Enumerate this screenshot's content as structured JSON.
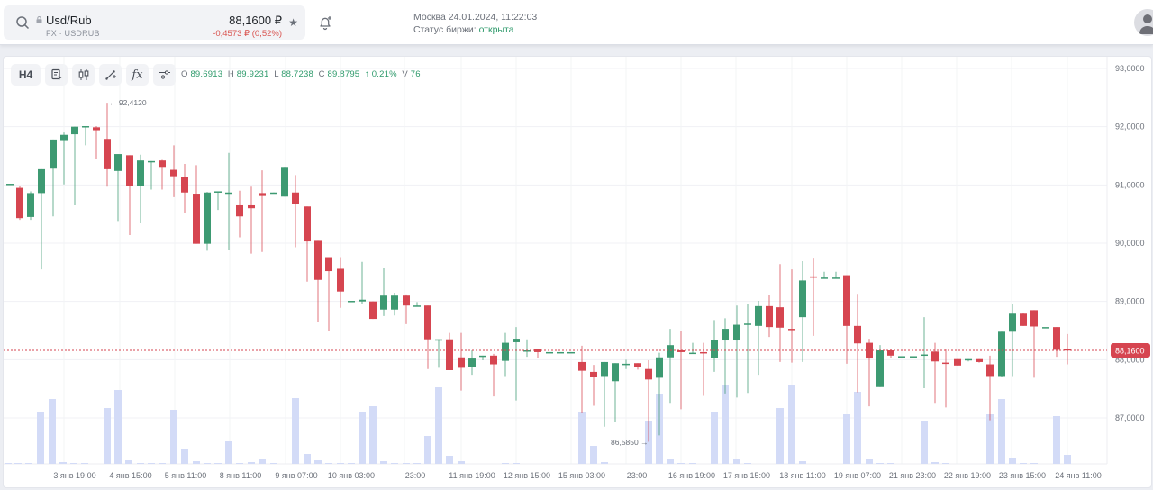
{
  "header": {
    "ticker_name": "Usd/Rub",
    "ticker_sub": "FX · USDRUB",
    "price": "88,1600 ₽",
    "change": "-0,4573 ₽ (0,52%)",
    "favorite_icon": "star-icon",
    "clock": "Москва 24.01.2024, 11:22:03",
    "status_label": "Статус биржи: ",
    "status_value": "открыта"
  },
  "toolbar": {
    "interval": "H4",
    "tools": [
      "chart-type-icon",
      "candles-icon",
      "draw-line-icon",
      "indicators-icon",
      "settings-sliders-icon"
    ],
    "fx_label": "fx"
  },
  "ohlc": {
    "o_label": "O",
    "o": "89.6913",
    "h_label": "H",
    "h": "89.9231",
    "l_label": "L",
    "l": "88.7238",
    "c_label": "C",
    "c": "89.8795",
    "change": "↑ 0.21%",
    "v_label": "V",
    "v": "76"
  },
  "colors": {
    "up": "#3d9a72",
    "down": "#d64550",
    "volume": "#d3dbf7",
    "price_line": "#d64550",
    "accent_green": "#2e9a6b"
  },
  "chart_data": {
    "type": "candlestick",
    "title": "Usd/Rub H4",
    "price_axis": [
      "93,0000",
      "92,0000",
      "91,0000",
      "90,0000",
      "89,0000",
      "88,0000",
      "87,0000"
    ],
    "ylim": [
      86.2,
      93.1
    ],
    "current_price_label": "88,1600",
    "current_price": 88.16,
    "high_marker": "← 92,4120",
    "low_marker": "86,5850 →",
    "time_axis": [
      "3 янв 19:00",
      "4 янв 15:00",
      "5 янв 11:00",
      "8 янв 11:00",
      "9 янв 07:00",
      "10 янв 03:00",
      "23:00",
      "11 янв 19:00",
      "12 янв 15:00",
      "15 янв 03:00",
      "23:00",
      "16 янв 19:00",
      "17 янв 15:00",
      "18 янв 11:00",
      "19 янв 07:00",
      "21 янв 23:00",
      "22 янв 19:00",
      "23 янв 15:00",
      "24 янв 11:00"
    ],
    "candles": [
      [
        10,
        91.02,
        91.02,
        91.02,
        91.02,
        2
      ],
      [
        21,
        90.95,
        90.98,
        90.4,
        90.43,
        2
      ],
      [
        33,
        90.45,
        90.89,
        90.4,
        90.86,
        2
      ],
      [
        45,
        90.86,
        91.25,
        89.55,
        91.27,
        58
      ],
      [
        58,
        91.28,
        91.77,
        90.46,
        91.78,
        63
      ],
      [
        70,
        91.77,
        91.9,
        91.01,
        91.86,
        2
      ],
      [
        82,
        91.87,
        92.0,
        90.65,
        92.0,
        2
      ],
      [
        94,
        92.0,
        92.01,
        91.68,
        92.01,
        2
      ],
      [
        106,
        91.99,
        92.01,
        91.44,
        91.94,
        58
      ],
      [
        118,
        91.79,
        92.41,
        90.97,
        91.27,
        68
      ],
      [
        130,
        91.24,
        91.53,
        90.38,
        91.53,
        2
      ],
      [
        143,
        91.51,
        91.51,
        90.14,
        90.99,
        2
      ],
      [
        155,
        90.98,
        91.52,
        90.34,
        91.42,
        2
      ],
      [
        167,
        91.41,
        91.41,
        90.92,
        91.41,
        2
      ],
      [
        179,
        91.42,
        91.43,
        90.92,
        91.31,
        2
      ],
      [
        192,
        91.26,
        91.68,
        90.79,
        91.15,
        2
      ],
      [
        204,
        91.14,
        91.36,
        90.52,
        90.87,
        52
      ],
      [
        217,
        90.85,
        91.34,
        90.37,
        89.99,
        2
      ],
      [
        229,
        89.99,
        90.88,
        89.87,
        90.87,
        2
      ],
      [
        241,
        90.89,
        90.89,
        90.57,
        90.89,
        2
      ],
      [
        253,
        90.87,
        91.55,
        89.89,
        90.87,
        2
      ],
      [
        265,
        90.65,
        90.9,
        90.1,
        90.46,
        2
      ],
      [
        278,
        90.65,
        90.97,
        89.82,
        90.6,
        2
      ],
      [
        290,
        90.86,
        91.25,
        89.85,
        90.81,
        2
      ],
      [
        303,
        90.87,
        90.87,
        90.86,
        90.87,
        2
      ],
      [
        315,
        90.8,
        91.31,
        90.86,
        91.31,
        22
      ],
      [
        327,
        90.87,
        91.17,
        89.93,
        90.67,
        2
      ],
      [
        340,
        90.63,
        90.63,
        89.34,
        90.03,
        2
      ],
      [
        352,
        90.04,
        90.04,
        88.65,
        89.37,
        2
      ],
      [
        364,
        89.76,
        89.76,
        88.5,
        89.52,
        2
      ],
      [
        377,
        89.56,
        89.76,
        88.89,
        89.17,
        2
      ],
      [
        389,
        89.01,
        89.01,
        89.01,
        89.01,
        2
      ],
      [
        401,
        89.0,
        89.68,
        88.95,
        89.03,
        2
      ],
      [
        413,
        89.0,
        89.0,
        89.0,
        88.7,
        2
      ],
      [
        425,
        88.86,
        89.57,
        88.75,
        89.1,
        58
      ],
      [
        437,
        88.86,
        89.15,
        88.76,
        89.1,
        63
      ],
      [
        450,
        89.1,
        89.12,
        88.61,
        88.93,
        2
      ],
      [
        462,
        88.93,
        88.99,
        88.92,
        88.93,
        2
      ],
      [
        474,
        88.93,
        88.93,
        87.84,
        88.35,
        2
      ],
      [
        486,
        88.35,
        88.35,
        87.86,
        88.35,
        2
      ],
      [
        498,
        88.35,
        88.46,
        88.06,
        87.82,
        2
      ],
      [
        511,
        88.04,
        88.46,
        87.47,
        87.86,
        2
      ],
      [
        523,
        87.87,
        88.16,
        87.74,
        88.02,
        2
      ],
      [
        535,
        88.07,
        88.07,
        87.99,
        88.07,
        2
      ],
      [
        547,
        88.07,
        88.1,
        87.37,
        87.92,
        2
      ],
      [
        560,
        87.98,
        88.46,
        87.72,
        88.29,
        2
      ],
      [
        572,
        88.3,
        88.56,
        87.3,
        88.36,
        2
      ],
      [
        584,
        88.16,
        88.35,
        88.05,
        88.16,
        2
      ],
      [
        596,
        88.19,
        88.19,
        88.02,
        88.13,
        2
      ],
      [
        609,
        88.13,
        88.13,
        88.13,
        88.13,
        2
      ],
      [
        621,
        88.13,
        88.13,
        88.13,
        88.13,
        2
      ],
      [
        633,
        88.13,
        88.13,
        88.13,
        88.13,
        2
      ],
      [
        645,
        87.96,
        88.24,
        87.09,
        87.81,
        55
      ],
      [
        658,
        87.79,
        87.91,
        87.21,
        87.71,
        2
      ],
      [
        670,
        87.72,
        87.96,
        86.85,
        87.96,
        2
      ],
      [
        682,
        87.63,
        87.9,
        86.93,
        87.94,
        2
      ],
      [
        694,
        87.93,
        88.0,
        87.84,
        87.93,
        2
      ],
      [
        707,
        87.94,
        87.93,
        87.83,
        87.88,
        2
      ],
      [
        719,
        87.84,
        87.99,
        86.59,
        87.66,
        2
      ],
      [
        731,
        87.69,
        88.12,
        86.7,
        88.04,
        60
      ],
      [
        743,
        88.04,
        88.53,
        87.26,
        88.25,
        2
      ],
      [
        755,
        88.16,
        88.5,
        87.15,
        88.13,
        2
      ],
      [
        768,
        88.12,
        88.29,
        88.1,
        88.12,
        2
      ],
      [
        780,
        88.13,
        88.29,
        87.38,
        88.12,
        2
      ],
      [
        792,
        88.03,
        88.68,
        87.79,
        88.34,
        2
      ],
      [
        804,
        88.33,
        88.71,
        87.42,
        88.53,
        2
      ],
      [
        817,
        88.33,
        88.93,
        87.35,
        88.6,
        2
      ],
      [
        829,
        88.62,
        88.96,
        87.43,
        88.62,
        2
      ],
      [
        841,
        88.58,
        89.01,
        87.74,
        88.92,
        2
      ],
      [
        853,
        88.92,
        89.11,
        88.39,
        88.56,
        2
      ],
      [
        865,
        88.9,
        89.64,
        87.96,
        88.55,
        2
      ],
      [
        878,
        88.53,
        89.55,
        87.95,
        88.52,
        2
      ],
      [
        890,
        88.73,
        89.69,
        87.96,
        89.36,
        2
      ],
      [
        902,
        89.43,
        89.75,
        88.41,
        89.41,
        2
      ],
      [
        914,
        89.41,
        89.51,
        89.4,
        89.41,
        2
      ],
      [
        927,
        89.41,
        89.51,
        89.4,
        89.41,
        2
      ],
      [
        939,
        89.45,
        89.45,
        87.93,
        88.58,
        42
      ],
      [
        951,
        88.58,
        89.13,
        87.44,
        88.28,
        63
      ],
      [
        964,
        88.29,
        88.36,
        87.2,
        88.02,
        2
      ],
      [
        976,
        87.53,
        88.25,
        87.58,
        88.16,
        2
      ],
      [
        988,
        88.16,
        88.18,
        88.02,
        88.07,
        2
      ],
      [
        1000,
        88.06,
        88.06,
        88.05,
        88.06,
        2
      ],
      [
        1013,
        88.06,
        88.06,
        88.06,
        88.06,
        2
      ],
      [
        1025,
        88.09,
        88.73,
        87.51,
        88.09,
        2
      ],
      [
        1037,
        88.14,
        88.29,
        87.26,
        87.97,
        42
      ],
      [
        1049,
        87.95,
        88.19,
        87.18,
        87.93,
        2
      ],
      [
        1062,
        88.01,
        88.01,
        87.98,
        87.9,
        2
      ],
      [
        1074,
        88.01,
        88.01,
        87.97,
        88.01,
        2
      ],
      [
        1086,
        88.01,
        88.01,
        87.95,
        87.96,
        2
      ],
      [
        1098,
        87.92,
        88.07,
        86.96,
        87.72,
        56
      ],
      [
        1111,
        87.72,
        88.48,
        87.71,
        88.48,
        2
      ],
      [
        1123,
        88.48,
        88.96,
        87.72,
        88.79,
        2
      ],
      [
        1135,
        88.79,
        88.81,
        88.58,
        88.58,
        2
      ],
      [
        1147,
        88.85,
        88.85,
        87.69,
        88.57,
        48
      ],
      [
        1160,
        88.56,
        88.56,
        88.56,
        88.56,
        2
      ],
      [
        1172,
        88.56,
        88.56,
        88.05,
        88.17,
        2
      ],
      [
        1184,
        88.18,
        88.44,
        87.92,
        88.16,
        56
      ]
    ],
    "volumes": [
      [
        8,
        1
      ],
      [
        19,
        1
      ],
      [
        31,
        1
      ],
      [
        44,
        58
      ],
      [
        57,
        72
      ],
      [
        69,
        2
      ],
      [
        81,
        1
      ],
      [
        93,
        1
      ],
      [
        106,
        0
      ],
      [
        118,
        62
      ],
      [
        130,
        82
      ],
      [
        142,
        4
      ],
      [
        155,
        1
      ],
      [
        167,
        1
      ],
      [
        179,
        1
      ],
      [
        192,
        60
      ],
      [
        204,
        16
      ],
      [
        217,
        3
      ],
      [
        229,
        1
      ],
      [
        241,
        1
      ],
      [
        253,
        25
      ],
      [
        265,
        1
      ],
      [
        278,
        2
      ],
      [
        290,
        5
      ],
      [
        303,
        1
      ],
      [
        315,
        0
      ],
      [
        327,
        73
      ],
      [
        340,
        11
      ],
      [
        352,
        4
      ],
      [
        364,
        1
      ],
      [
        377,
        1
      ],
      [
        389,
        1
      ],
      [
        401,
        58
      ],
      [
        413,
        64
      ],
      [
        425,
        3
      ],
      [
        437,
        1
      ],
      [
        450,
        1
      ],
      [
        462,
        1
      ],
      [
        474,
        31
      ],
      [
        486,
        85
      ],
      [
        498,
        9
      ],
      [
        511,
        3
      ],
      [
        523,
        0
      ],
      [
        535,
        0
      ],
      [
        547,
        0
      ],
      [
        560,
        1
      ],
      [
        572,
        1
      ],
      [
        584,
        0
      ],
      [
        596,
        0
      ],
      [
        609,
        0
      ],
      [
        621,
        0
      ],
      [
        633,
        0
      ],
      [
        645,
        58
      ],
      [
        658,
        20
      ],
      [
        670,
        2
      ],
      [
        682,
        0
      ],
      [
        694,
        0
      ],
      [
        707,
        0
      ],
      [
        719,
        48
      ],
      [
        731,
        78
      ],
      [
        743,
        5
      ],
      [
        755,
        1
      ],
      [
        768,
        1
      ],
      [
        780,
        0
      ],
      [
        792,
        58
      ],
      [
        804,
        88
      ],
      [
        817,
        5
      ],
      [
        829,
        1
      ],
      [
        841,
        0
      ],
      [
        853,
        0
      ],
      [
        865,
        62
      ],
      [
        878,
        88
      ],
      [
        890,
        3
      ],
      [
        902,
        0
      ],
      [
        914,
        0
      ],
      [
        927,
        0
      ],
      [
        939,
        55
      ],
      [
        951,
        80
      ],
      [
        964,
        5
      ],
      [
        976,
        1
      ],
      [
        988,
        1
      ],
      [
        1000,
        0
      ],
      [
        1013,
        0
      ],
      [
        1025,
        48
      ],
      [
        1037,
        2
      ],
      [
        1049,
        1
      ],
      [
        1062,
        0
      ],
      [
        1074,
        0
      ],
      [
        1086,
        0
      ],
      [
        1098,
        55
      ],
      [
        1111,
        72
      ],
      [
        1123,
        6
      ],
      [
        1135,
        1
      ],
      [
        1147,
        1
      ],
      [
        1160,
        0
      ],
      [
        1172,
        53
      ],
      [
        1184,
        10
      ]
    ]
  }
}
